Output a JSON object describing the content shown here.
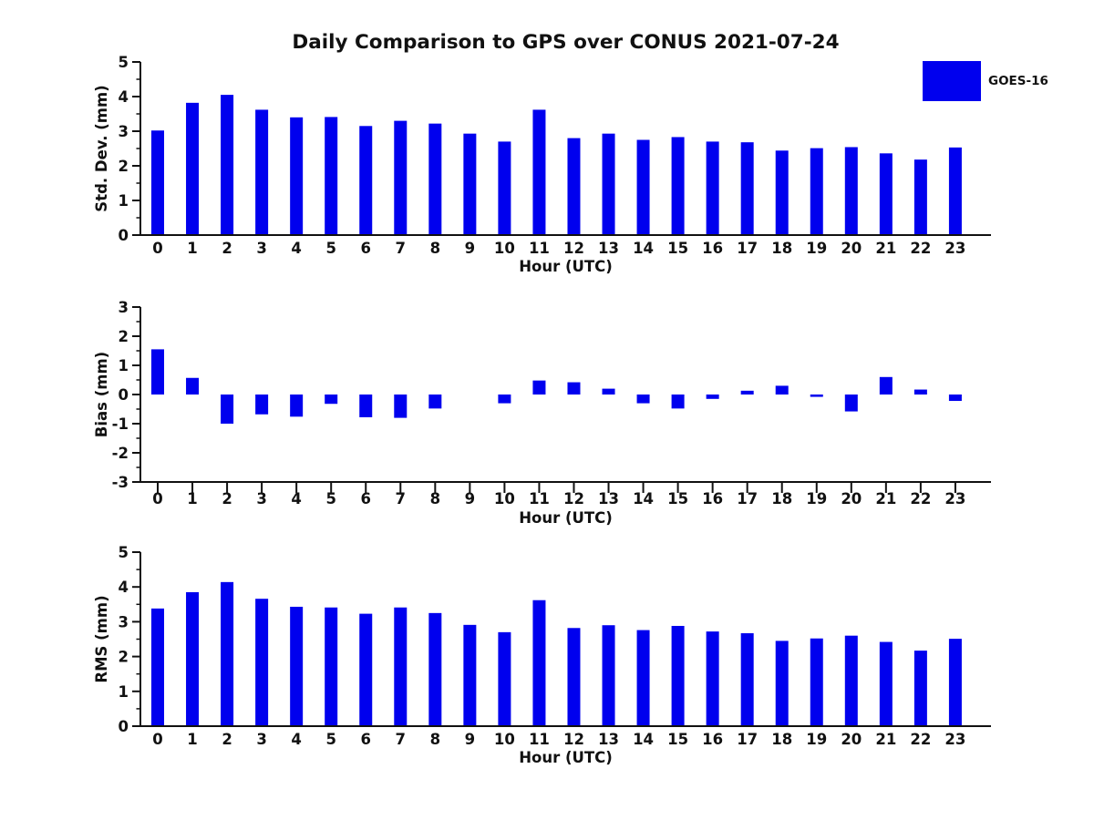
{
  "title": "Daily Comparison to GPS over CONUS 2021-07-24",
  "legend": {
    "label": "GOES-16",
    "color": "#0000EE"
  },
  "chart_data": [
    {
      "type": "bar",
      "panel": "stddev",
      "series_name": "GOES-16",
      "bar_color": "#0000EE",
      "ylabel": "Std. Dev. (mm)",
      "xlabel": "Hour (UTC)",
      "categories": [
        "0",
        "1",
        "2",
        "3",
        "4",
        "5",
        "6",
        "7",
        "8",
        "9",
        "10",
        "11",
        "12",
        "13",
        "14",
        "15",
        "16",
        "17",
        "18",
        "19",
        "20",
        "21",
        "22",
        "23"
      ],
      "values": [
        3.02,
        3.82,
        4.05,
        3.62,
        3.4,
        3.41,
        3.15,
        3.3,
        3.22,
        2.93,
        2.7,
        3.62,
        2.8,
        2.93,
        2.75,
        2.83,
        2.7,
        2.68,
        2.44,
        2.51,
        2.54,
        2.36,
        2.18,
        2.53
      ],
      "ylim": [
        0,
        5
      ],
      "ytick_step": 1,
      "yminor_step": 0.5,
      "grid": false,
      "legend_position": "top-right-outside"
    },
    {
      "type": "bar",
      "panel": "bias",
      "series_name": "GOES-16",
      "bar_color": "#0000EE",
      "ylabel": "Bias (mm)",
      "xlabel": "Hour (UTC)",
      "categories": [
        "0",
        "1",
        "2",
        "3",
        "4",
        "5",
        "6",
        "7",
        "8",
        "9",
        "10",
        "11",
        "12",
        "13",
        "14",
        "15",
        "16",
        "17",
        "18",
        "19",
        "20",
        "21",
        "22",
        "23"
      ],
      "values": [
        1.55,
        0.57,
        -1.0,
        -0.68,
        -0.76,
        -0.32,
        -0.78,
        -0.8,
        -0.48,
        0.0,
        -0.3,
        0.48,
        0.42,
        0.2,
        -0.3,
        -0.48,
        -0.15,
        0.13,
        0.3,
        -0.08,
        -0.58,
        0.6,
        0.17,
        -0.22
      ],
      "ylim": [
        -3,
        3
      ],
      "ytick_step": 1,
      "yminor_step": 0.5,
      "zero_line": true,
      "grid": false
    },
    {
      "type": "bar",
      "panel": "rms",
      "series_name": "GOES-16",
      "bar_color": "#0000EE",
      "ylabel": "RMS (mm)",
      "xlabel": "Hour (UTC)",
      "categories": [
        "0",
        "1",
        "2",
        "3",
        "4",
        "5",
        "6",
        "7",
        "8",
        "9",
        "10",
        "11",
        "12",
        "13",
        "14",
        "15",
        "16",
        "17",
        "18",
        "19",
        "20",
        "21",
        "22",
        "23"
      ],
      "values": [
        3.38,
        3.85,
        4.14,
        3.66,
        3.43,
        3.41,
        3.23,
        3.41,
        3.25,
        2.91,
        2.7,
        3.62,
        2.82,
        2.9,
        2.76,
        2.88,
        2.72,
        2.67,
        2.45,
        2.52,
        2.6,
        2.42,
        2.17,
        2.51
      ],
      "ylim": [
        0,
        5
      ],
      "ytick_step": 1,
      "yminor_step": 0.5,
      "grid": false
    }
  ]
}
